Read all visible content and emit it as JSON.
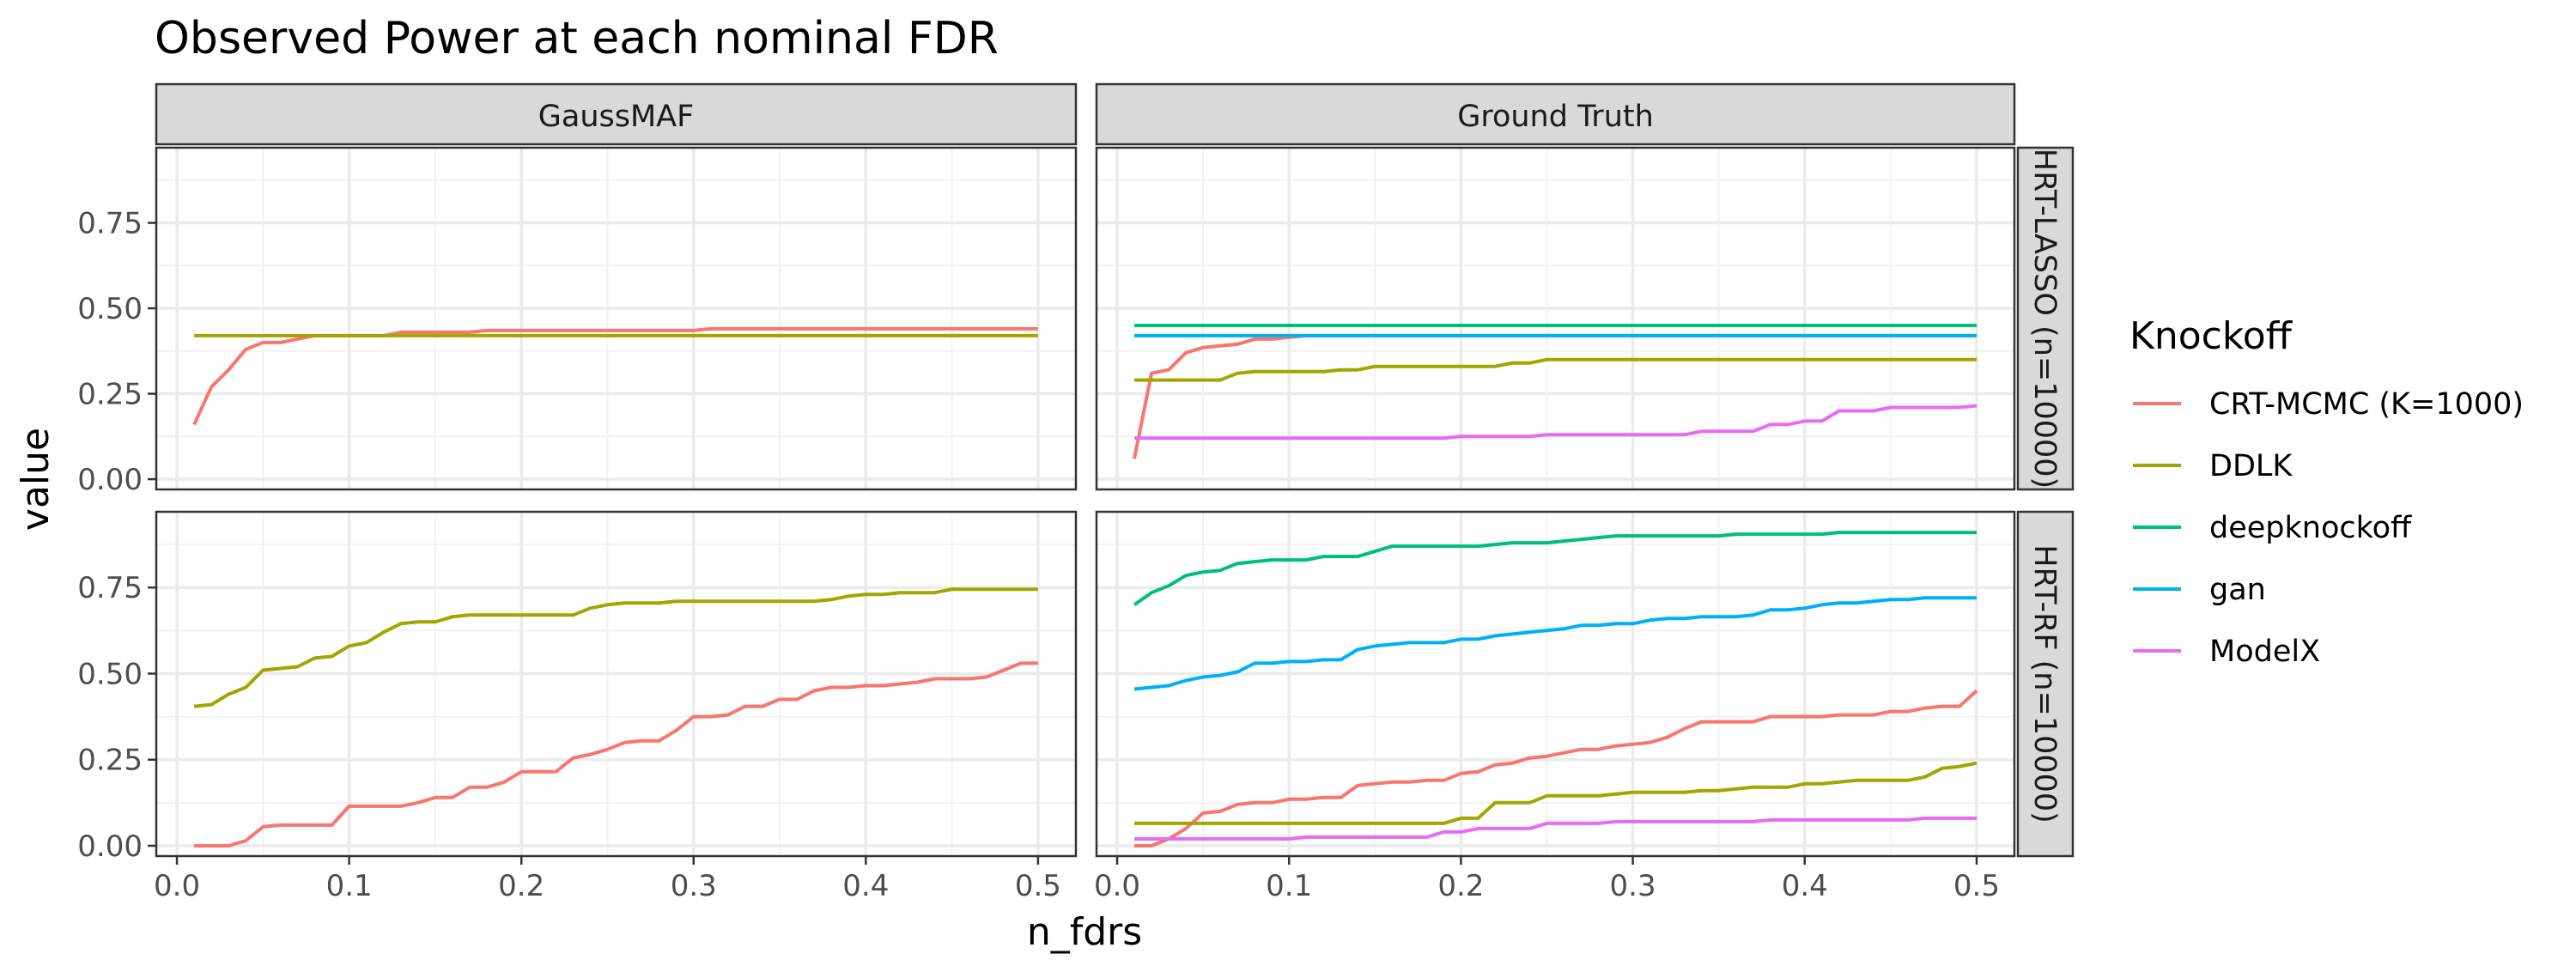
{
  "title": "Observed Power at each nominal FDR",
  "xlabel": "n_fdrs",
  "ylabel": "value",
  "legend": {
    "title": "Knockoff",
    "entries": [
      {
        "name": "CRT-MCMC (K=1000)",
        "color": "#F8766D"
      },
      {
        "name": "DDLK",
        "color": "#A3A500"
      },
      {
        "name": "deepknockoff",
        "color": "#00BF7D"
      },
      {
        "name": "gan",
        "color": "#00B0F6"
      },
      {
        "name": "ModelX",
        "color": "#E76BF3"
      }
    ]
  },
  "column_strips": [
    "GaussMAF",
    "Ground Truth"
  ],
  "row_strips": [
    "HRT-LASSO (n=10000)",
    "HRT-RF (n=10000)"
  ],
  "x_ticks": [
    "0.0",
    "0.1",
    "0.2",
    "0.3",
    "0.4",
    "0.5"
  ],
  "y_ticks": [
    "0.00",
    "0.25",
    "0.50",
    "0.75"
  ],
  "chart_data": {
    "type": "line",
    "title": "Observed Power at each nominal FDR",
    "xlabel": "n_fdrs",
    "ylabel": "value",
    "xlim": [
      -0.012,
      0.522
    ],
    "ylim": [
      -0.03,
      0.97
    ],
    "grid": true,
    "legend_position": "right",
    "x": [
      0.01,
      0.02,
      0.03,
      0.04,
      0.05,
      0.06,
      0.07,
      0.08,
      0.09,
      0.1,
      0.11,
      0.12,
      0.13,
      0.14,
      0.15,
      0.16,
      0.17,
      0.18,
      0.19,
      0.2,
      0.21,
      0.22,
      0.23,
      0.24,
      0.25,
      0.26,
      0.27,
      0.28,
      0.29,
      0.3,
      0.31,
      0.32,
      0.33,
      0.34,
      0.35,
      0.36,
      0.37,
      0.38,
      0.39,
      0.4,
      0.41,
      0.42,
      0.43,
      0.44,
      0.45,
      0.46,
      0.47,
      0.48,
      0.49,
      0.5
    ],
    "panels": [
      {
        "column": "GaussMAF",
        "row": "HRT-LASSO (n=10000)",
        "series": [
          {
            "name": "CRT-MCMC (K=1000)",
            "values": [
              0.16,
              0.27,
              0.32,
              0.38,
              0.4,
              0.4,
              0.41,
              0.42,
              0.42,
              0.42,
              0.42,
              0.42,
              0.43,
              0.43,
              0.43,
              0.43,
              0.43,
              0.435,
              0.435,
              0.435,
              0.435,
              0.435,
              0.435,
              0.435,
              0.435,
              0.435,
              0.435,
              0.435,
              0.435,
              0.435,
              0.44,
              0.44,
              0.44,
              0.44,
              0.44,
              0.44,
              0.44,
              0.44,
              0.44,
              0.44,
              0.44,
              0.44,
              0.44,
              0.44,
              0.44,
              0.44,
              0.44,
              0.44,
              0.44,
              0.44
            ]
          },
          {
            "name": "DDLK",
            "values": [
              0.42,
              0.42,
              0.42,
              0.42,
              0.42,
              0.42,
              0.42,
              0.42,
              0.42,
              0.42,
              0.42,
              0.42,
              0.42,
              0.42,
              0.42,
              0.42,
              0.42,
              0.42,
              0.42,
              0.42,
              0.42,
              0.42,
              0.42,
              0.42,
              0.42,
              0.42,
              0.42,
              0.42,
              0.42,
              0.42,
              0.42,
              0.42,
              0.42,
              0.42,
              0.42,
              0.42,
              0.42,
              0.42,
              0.42,
              0.42,
              0.42,
              0.42,
              0.42,
              0.42,
              0.42,
              0.42,
              0.42,
              0.42,
              0.42,
              0.42
            ]
          }
        ]
      },
      {
        "column": "Ground Truth",
        "row": "HRT-LASSO (n=10000)",
        "series": [
          {
            "name": "CRT-MCMC (K=1000)",
            "values": [
              0.06,
              0.31,
              0.32,
              0.37,
              0.385,
              0.39,
              0.395,
              0.41,
              0.41,
              0.415,
              0.42,
              0.42,
              0.42,
              0.42,
              0.42,
              0.42,
              0.42,
              0.42,
              0.42,
              0.42,
              0.42,
              0.42,
              0.42,
              0.42,
              0.42,
              0.42,
              0.42,
              0.42,
              0.42,
              0.42,
              0.42,
              0.42,
              0.42,
              0.42,
              0.42,
              0.42,
              0.42,
              0.42,
              0.42,
              0.42,
              0.42,
              0.42,
              0.42,
              0.42,
              0.42,
              0.42,
              0.42,
              0.42,
              0.42,
              0.42
            ]
          },
          {
            "name": "DDLK",
            "values": [
              0.29,
              0.29,
              0.29,
              0.29,
              0.29,
              0.29,
              0.31,
              0.315,
              0.315,
              0.315,
              0.315,
              0.315,
              0.32,
              0.32,
              0.33,
              0.33,
              0.33,
              0.33,
              0.33,
              0.33,
              0.33,
              0.33,
              0.34,
              0.34,
              0.35,
              0.35,
              0.35,
              0.35,
              0.35,
              0.35,
              0.35,
              0.35,
              0.35,
              0.35,
              0.35,
              0.35,
              0.35,
              0.35,
              0.35,
              0.35,
              0.35,
              0.35,
              0.35,
              0.35,
              0.35,
              0.35,
              0.35,
              0.35,
              0.35,
              0.35
            ]
          },
          {
            "name": "deepknockoff",
            "values": [
              0.45,
              0.45,
              0.45,
              0.45,
              0.45,
              0.45,
              0.45,
              0.45,
              0.45,
              0.45,
              0.45,
              0.45,
              0.45,
              0.45,
              0.45,
              0.45,
              0.45,
              0.45,
              0.45,
              0.45,
              0.45,
              0.45,
              0.45,
              0.45,
              0.45,
              0.45,
              0.45,
              0.45,
              0.45,
              0.45,
              0.45,
              0.45,
              0.45,
              0.45,
              0.45,
              0.45,
              0.45,
              0.45,
              0.45,
              0.45,
              0.45,
              0.45,
              0.45,
              0.45,
              0.45,
              0.45,
              0.45,
              0.45,
              0.45,
              0.45
            ]
          },
          {
            "name": "gan",
            "values": [
              0.42,
              0.42,
              0.42,
              0.42,
              0.42,
              0.42,
              0.42,
              0.42,
              0.42,
              0.42,
              0.42,
              0.42,
              0.42,
              0.42,
              0.42,
              0.42,
              0.42,
              0.42,
              0.42,
              0.42,
              0.42,
              0.42,
              0.42,
              0.42,
              0.42,
              0.42,
              0.42,
              0.42,
              0.42,
              0.42,
              0.42,
              0.42,
              0.42,
              0.42,
              0.42,
              0.42,
              0.42,
              0.42,
              0.42,
              0.42,
              0.42,
              0.42,
              0.42,
              0.42,
              0.42,
              0.42,
              0.42,
              0.42,
              0.42,
              0.42
            ]
          },
          {
            "name": "ModelX",
            "values": [
              0.12,
              0.12,
              0.12,
              0.12,
              0.12,
              0.12,
              0.12,
              0.12,
              0.12,
              0.12,
              0.12,
              0.12,
              0.12,
              0.12,
              0.12,
              0.12,
              0.12,
              0.12,
              0.12,
              0.125,
              0.125,
              0.125,
              0.125,
              0.125,
              0.13,
              0.13,
              0.13,
              0.13,
              0.13,
              0.13,
              0.13,
              0.13,
              0.13,
              0.14,
              0.14,
              0.14,
              0.14,
              0.16,
              0.16,
              0.17,
              0.17,
              0.2,
              0.2,
              0.2,
              0.21,
              0.21,
              0.21,
              0.21,
              0.21,
              0.215
            ]
          }
        ]
      },
      {
        "column": "GaussMAF",
        "row": "HRT-RF (n=10000)",
        "series": [
          {
            "name": "CRT-MCMC (K=1000)",
            "values": [
              0.0,
              0.0,
              0.0,
              0.015,
              0.055,
              0.06,
              0.06,
              0.06,
              0.06,
              0.115,
              0.115,
              0.115,
              0.115,
              0.125,
              0.14,
              0.14,
              0.17,
              0.17,
              0.185,
              0.215,
              0.215,
              0.215,
              0.255,
              0.265,
              0.28,
              0.3,
              0.305,
              0.305,
              0.335,
              0.375,
              0.375,
              0.38,
              0.405,
              0.405,
              0.425,
              0.425,
              0.45,
              0.46,
              0.46,
              0.465,
              0.465,
              0.47,
              0.475,
              0.485,
              0.485,
              0.485,
              0.49,
              0.51,
              0.53,
              0.53
            ]
          },
          {
            "name": "DDLK",
            "values": [
              0.405,
              0.41,
              0.44,
              0.46,
              0.51,
              0.515,
              0.52,
              0.545,
              0.55,
              0.58,
              0.59,
              0.62,
              0.645,
              0.65,
              0.65,
              0.665,
              0.67,
              0.67,
              0.67,
              0.67,
              0.67,
              0.67,
              0.67,
              0.69,
              0.7,
              0.705,
              0.705,
              0.705,
              0.71,
              0.71,
              0.71,
              0.71,
              0.71,
              0.71,
              0.71,
              0.71,
              0.71,
              0.715,
              0.725,
              0.73,
              0.73,
              0.735,
              0.735,
              0.735,
              0.745,
              0.745,
              0.745,
              0.745,
              0.745,
              0.745
            ]
          }
        ]
      },
      {
        "column": "Ground Truth",
        "row": "HRT-RF (n=10000)",
        "series": [
          {
            "name": "CRT-MCMC (K=1000)",
            "values": [
              0.0,
              0.0,
              0.02,
              0.05,
              0.095,
              0.1,
              0.12,
              0.125,
              0.125,
              0.135,
              0.135,
              0.14,
              0.14,
              0.175,
              0.18,
              0.185,
              0.185,
              0.19,
              0.19,
              0.21,
              0.215,
              0.235,
              0.24,
              0.255,
              0.26,
              0.27,
              0.28,
              0.28,
              0.29,
              0.295,
              0.3,
              0.315,
              0.34,
              0.36,
              0.36,
              0.36,
              0.36,
              0.375,
              0.375,
              0.375,
              0.375,
              0.38,
              0.38,
              0.38,
              0.39,
              0.39,
              0.4,
              0.405,
              0.405,
              0.45
            ]
          },
          {
            "name": "DDLK",
            "values": [
              0.065,
              0.065,
              0.065,
              0.065,
              0.065,
              0.065,
              0.065,
              0.065,
              0.065,
              0.065,
              0.065,
              0.065,
              0.065,
              0.065,
              0.065,
              0.065,
              0.065,
              0.065,
              0.065,
              0.08,
              0.08,
              0.125,
              0.125,
              0.125,
              0.145,
              0.145,
              0.145,
              0.145,
              0.15,
              0.155,
              0.155,
              0.155,
              0.155,
              0.16,
              0.16,
              0.165,
              0.17,
              0.17,
              0.17,
              0.18,
              0.18,
              0.185,
              0.19,
              0.19,
              0.19,
              0.19,
              0.2,
              0.225,
              0.23,
              0.24
            ]
          },
          {
            "name": "deepknockoff",
            "values": [
              0.7,
              0.735,
              0.755,
              0.785,
              0.795,
              0.8,
              0.82,
              0.825,
              0.83,
              0.83,
              0.83,
              0.84,
              0.84,
              0.84,
              0.855,
              0.87,
              0.87,
              0.87,
              0.87,
              0.87,
              0.87,
              0.875,
              0.88,
              0.88,
              0.88,
              0.885,
              0.89,
              0.895,
              0.9,
              0.9,
              0.9,
              0.9,
              0.9,
              0.9,
              0.9,
              0.905,
              0.905,
              0.905,
              0.905,
              0.905,
              0.905,
              0.91,
              0.91,
              0.91,
              0.91,
              0.91,
              0.91,
              0.91,
              0.91,
              0.91
            ]
          },
          {
            "name": "gan",
            "values": [
              0.455,
              0.46,
              0.465,
              0.48,
              0.49,
              0.495,
              0.505,
              0.53,
              0.53,
              0.535,
              0.535,
              0.54,
              0.54,
              0.57,
              0.58,
              0.585,
              0.59,
              0.59,
              0.59,
              0.6,
              0.6,
              0.61,
              0.615,
              0.62,
              0.625,
              0.63,
              0.64,
              0.64,
              0.645,
              0.645,
              0.655,
              0.66,
              0.66,
              0.665,
              0.665,
              0.665,
              0.67,
              0.685,
              0.685,
              0.69,
              0.7,
              0.705,
              0.705,
              0.71,
              0.715,
              0.715,
              0.72,
              0.72,
              0.72,
              0.72
            ]
          },
          {
            "name": "ModelX",
            "values": [
              0.02,
              0.02,
              0.02,
              0.02,
              0.02,
              0.02,
              0.02,
              0.02,
              0.02,
              0.02,
              0.025,
              0.025,
              0.025,
              0.025,
              0.025,
              0.025,
              0.025,
              0.025,
              0.04,
              0.04,
              0.05,
              0.05,
              0.05,
              0.05,
              0.065,
              0.065,
              0.065,
              0.065,
              0.07,
              0.07,
              0.07,
              0.07,
              0.07,
              0.07,
              0.07,
              0.07,
              0.07,
              0.075,
              0.075,
              0.075,
              0.075,
              0.075,
              0.075,
              0.075,
              0.075,
              0.075,
              0.08,
              0.08,
              0.08,
              0.08
            ]
          }
        ]
      }
    ]
  }
}
